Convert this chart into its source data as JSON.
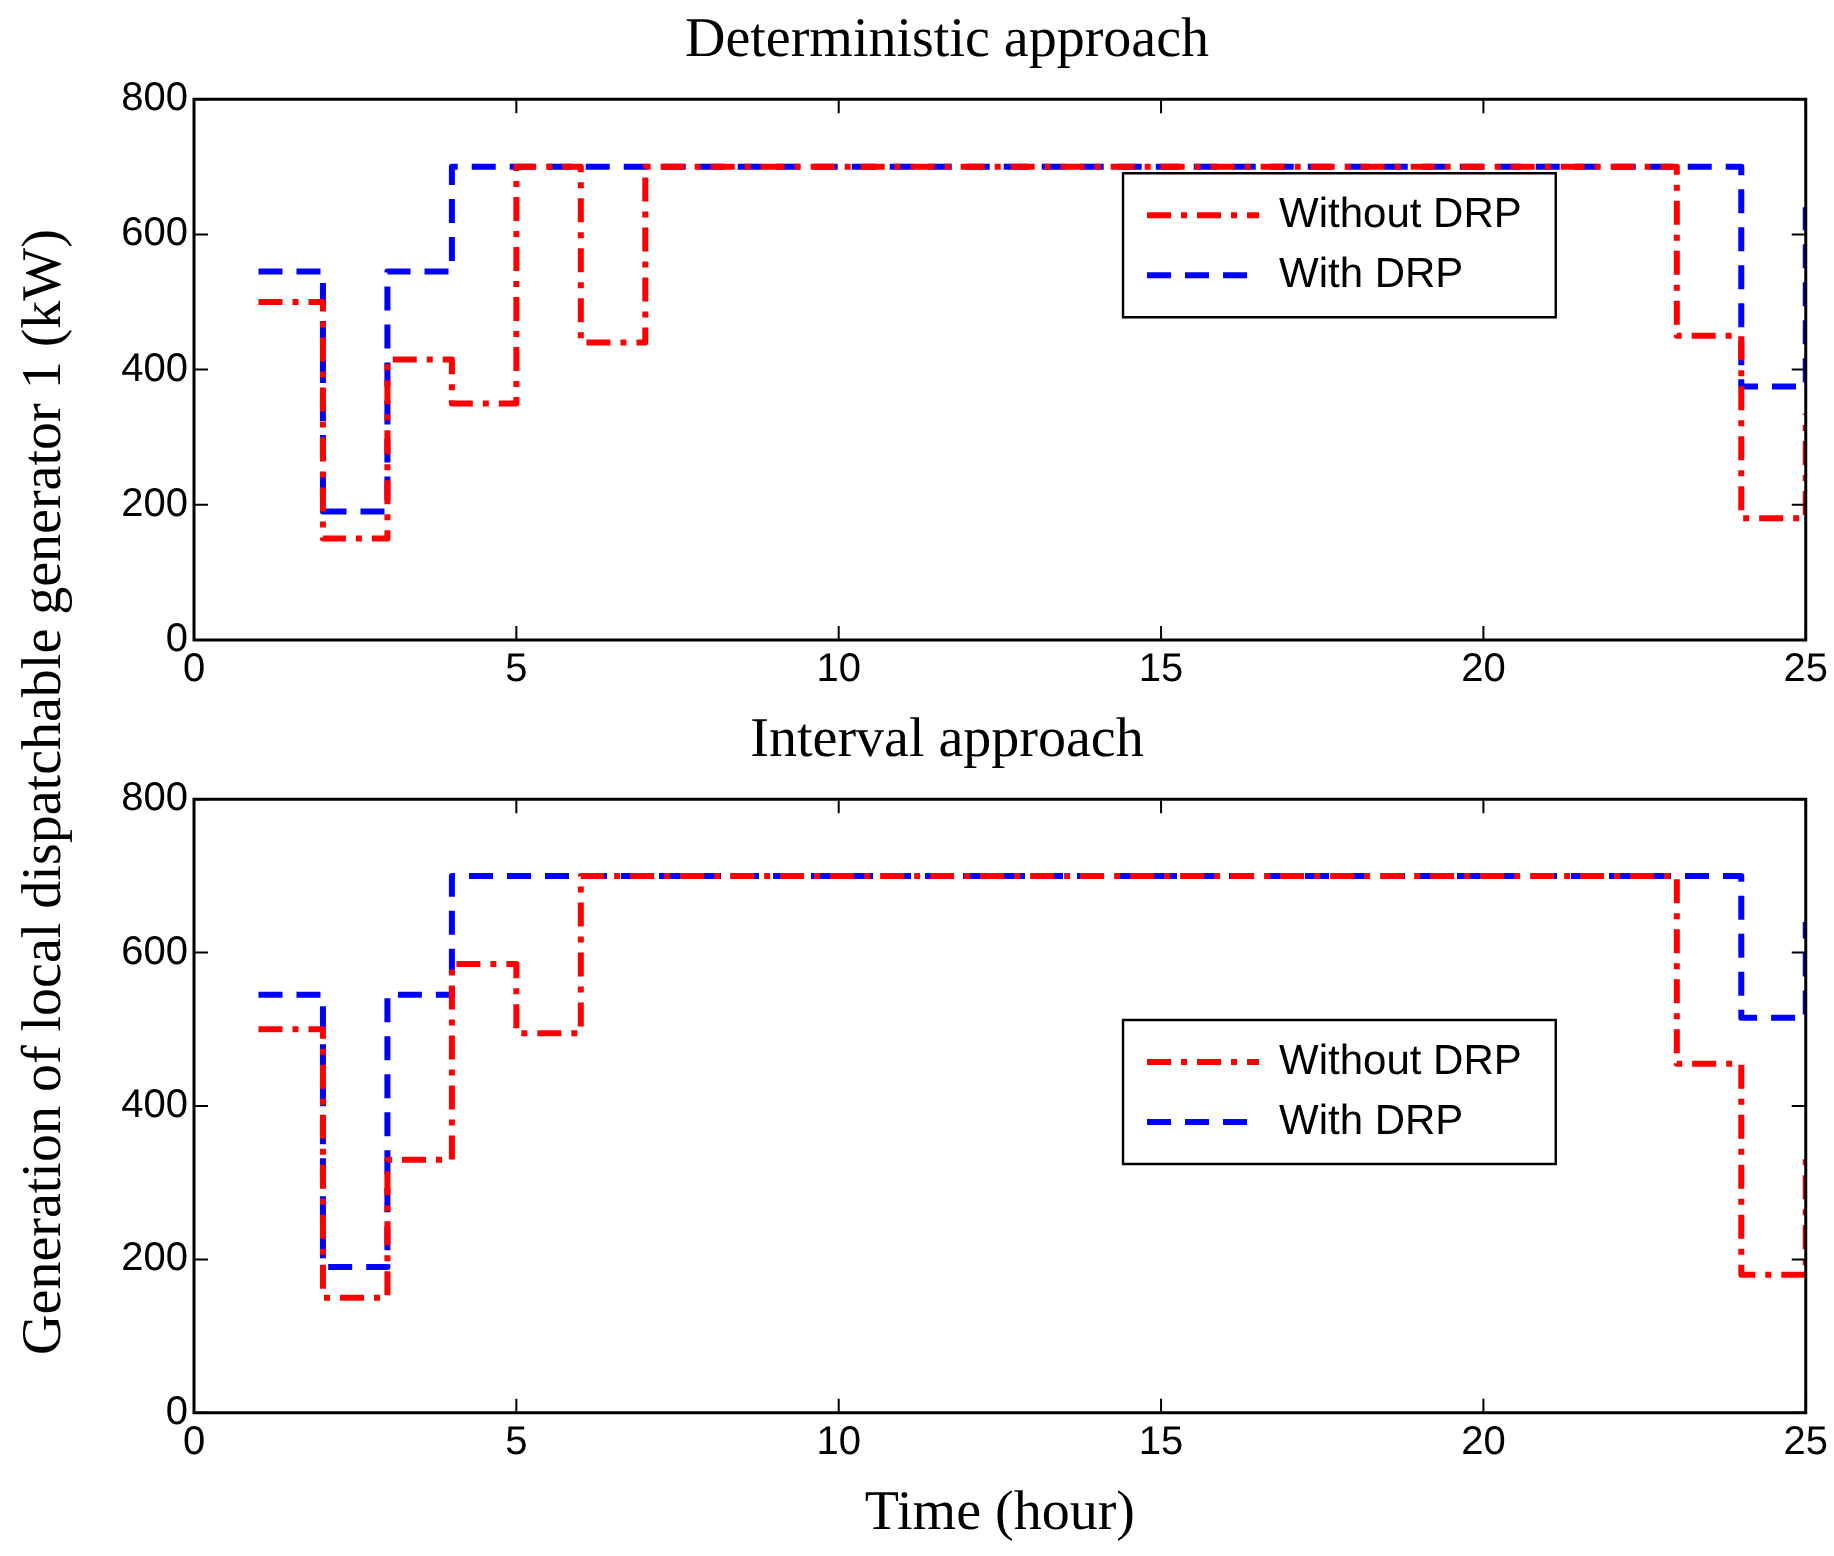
{
  "chart_data": [
    {
      "type": "step",
      "title": "Deterministic approach",
      "ylabel": "Generation of local dispatchable generator 1 (kW)",
      "x": [
        1,
        2,
        3,
        4,
        5,
        6,
        7,
        8,
        9,
        10,
        11,
        12,
        13,
        14,
        15,
        16,
        17,
        18,
        19,
        20,
        21,
        22,
        23,
        24,
        25
      ],
      "xlim": [
        0,
        25
      ],
      "xticks": [
        0,
        5,
        10,
        15,
        20,
        25
      ],
      "ylim": [
        0,
        800
      ],
      "yticks": [
        0,
        200,
        400,
        600,
        800
      ],
      "grid": false,
      "legend": "top right",
      "marker": "none",
      "series": [
        {
          "name": "Without DRP",
          "color": "#ff0000",
          "line_style": "dashdot",
          "values": [
            500,
            150,
            415,
            350,
            700,
            440,
            700,
            700,
            700,
            700,
            700,
            700,
            700,
            700,
            700,
            700,
            700,
            700,
            700,
            700,
            700,
            700,
            450,
            180,
            335
          ]
        },
        {
          "name": "With DRP",
          "color": "#0000ff",
          "line_style": "dashed",
          "values": [
            545,
            190,
            545,
            700,
            700,
            700,
            700,
            700,
            700,
            700,
            700,
            700,
            700,
            700,
            700,
            700,
            700,
            700,
            700,
            700,
            700,
            700,
            700,
            375,
            640
          ]
        }
      ]
    },
    {
      "type": "step",
      "title": "Interval approach",
      "xlabel": "Time (hour)",
      "x": [
        1,
        2,
        3,
        4,
        5,
        6,
        7,
        8,
        9,
        10,
        11,
        12,
        13,
        14,
        15,
        16,
        17,
        18,
        19,
        20,
        21,
        22,
        23,
        24,
        25
      ],
      "xlim": [
        0,
        25
      ],
      "xticks": [
        0,
        5,
        10,
        15,
        20,
        25
      ],
      "ylim": [
        0,
        800
      ],
      "yticks": [
        0,
        200,
        400,
        600,
        800
      ],
      "grid": false,
      "legend": "right",
      "marker": "none",
      "series": [
        {
          "name": "Without DRP",
          "color": "#ff0000",
          "line_style": "dashdot",
          "values": [
            500,
            150,
            330,
            585,
            495,
            700,
            700,
            700,
            700,
            700,
            700,
            700,
            700,
            700,
            700,
            700,
            700,
            700,
            700,
            700,
            700,
            700,
            455,
            180,
            335
          ]
        },
        {
          "name": "With DRP",
          "color": "#0000ff",
          "line_style": "dashed",
          "values": [
            545,
            190,
            545,
            700,
            700,
            700,
            700,
            700,
            700,
            700,
            700,
            700,
            700,
            700,
            700,
            700,
            700,
            700,
            700,
            700,
            700,
            700,
            700,
            515,
            640
          ]
        }
      ]
    }
  ]
}
